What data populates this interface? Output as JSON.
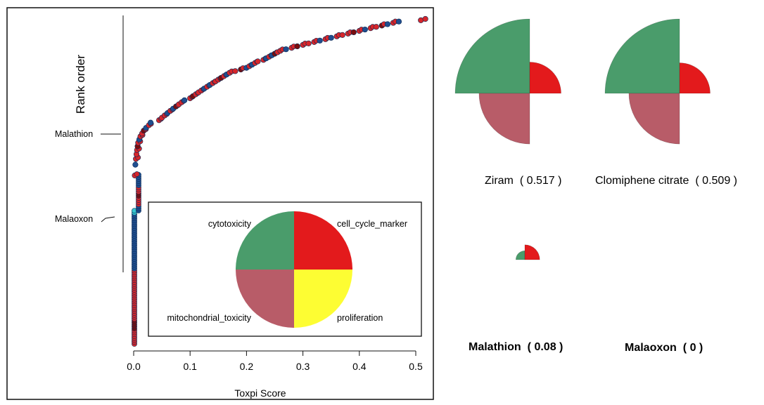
{
  "chart_data": [
    {
      "type": "scatter",
      "xlabel": "Toxpi Score",
      "ylabel": "Rank order",
      "xlim": [
        0.0,
        0.5
      ],
      "x_ticks": [
        "0.0",
        "0.1",
        "0.2",
        "0.3",
        "0.4",
        "0.5"
      ],
      "annotations": [
        {
          "text": "Malathion",
          "rank_fraction": 0.47
        },
        {
          "text": "Malaoxon",
          "rank_fraction": 0.2
        }
      ],
      "legend": {
        "placement": "inset bottom-right",
        "slices": [
          {
            "name": "cytotoxicity",
            "color": "#4a9c6b"
          },
          {
            "name": "cell_cycle_marker",
            "color": "#e31a1c"
          },
          {
            "name": "proliferation",
            "color": "#fdfd33"
          },
          {
            "name": "mitochondrial_toxicity",
            "color": "#b85c68"
          }
        ]
      },
      "point_colors": [
        "#1f4e8f",
        "#d7262b",
        "#7a0d0d",
        "#35c5d0"
      ],
      "points_description_scores_sorted": [
        0.002,
        0.003,
        0.004,
        0.005,
        0.006,
        0.007,
        0.008,
        0.01,
        0.012,
        0.015,
        0.018,
        0.022,
        0.027,
        0.03,
        0.045,
        0.05,
        0.055,
        0.06,
        0.065,
        0.07,
        0.075,
        0.08,
        0.085,
        0.09,
        0.1,
        0.105,
        0.11,
        0.115,
        0.12,
        0.125,
        0.13,
        0.135,
        0.14,
        0.145,
        0.15,
        0.155,
        0.16,
        0.165,
        0.17,
        0.18,
        0.19,
        0.2,
        0.205,
        0.21,
        0.215,
        0.22,
        0.23,
        0.235,
        0.24,
        0.245,
        0.25,
        0.255,
        0.26,
        0.27,
        0.28,
        0.29,
        0.3,
        0.31,
        0.32,
        0.33,
        0.34,
        0.35,
        0.36,
        0.37,
        0.38,
        0.39,
        0.4,
        0.41,
        0.42,
        0.43,
        0.44,
        0.45,
        0.46,
        0.47,
        0.509,
        0.517
      ]
    },
    {
      "type": "pie",
      "title": "Ziram",
      "score": "( 0.517 )",
      "slices": [
        {
          "name": "cytotoxicity",
          "value": 1.0,
          "color": "#4a9c6b"
        },
        {
          "name": "cell_cycle_marker",
          "value": 0.42,
          "color": "#e31a1c"
        },
        {
          "name": "proliferation",
          "value": 0.0,
          "color": "#fdfd33"
        },
        {
          "name": "mitochondrial_toxicity",
          "value": 0.68,
          "color": "#b85c68"
        }
      ]
    },
    {
      "type": "pie",
      "title": "Clomiphene citrate",
      "score": "( 0.509 )",
      "slices": [
        {
          "name": "cytotoxicity",
          "value": 1.0,
          "color": "#4a9c6b"
        },
        {
          "name": "cell_cycle_marker",
          "value": 0.41,
          "color": "#e31a1c"
        },
        {
          "name": "proliferation",
          "value": 0.0,
          "color": "#fdfd33"
        },
        {
          "name": "mitochondrial_toxicity",
          "value": 0.68,
          "color": "#b85c68"
        }
      ]
    },
    {
      "type": "pie",
      "title": "Malathion",
      "score": "( 0.08 )",
      "slices": [
        {
          "name": "cytotoxicity",
          "value": 0.12,
          "color": "#4a9c6b"
        },
        {
          "name": "cell_cycle_marker",
          "value": 0.2,
          "color": "#e31a1c"
        },
        {
          "name": "proliferation",
          "value": 0.0,
          "color": "#fdfd33"
        },
        {
          "name": "mitochondrial_toxicity",
          "value": 0.0,
          "color": "#b85c68"
        }
      ]
    },
    {
      "type": "pie",
      "title": "Malaoxon",
      "score": "( 0 )",
      "slices": [
        {
          "name": "cytotoxicity",
          "value": 0.0,
          "color": "#4a9c6b"
        },
        {
          "name": "cell_cycle_marker",
          "value": 0.0,
          "color": "#e31a1c"
        },
        {
          "name": "proliferation",
          "value": 0.0,
          "color": "#fdfd33"
        },
        {
          "name": "mitochondrial_toxicity",
          "value": 0.0,
          "color": "#b85c68"
        }
      ]
    }
  ]
}
